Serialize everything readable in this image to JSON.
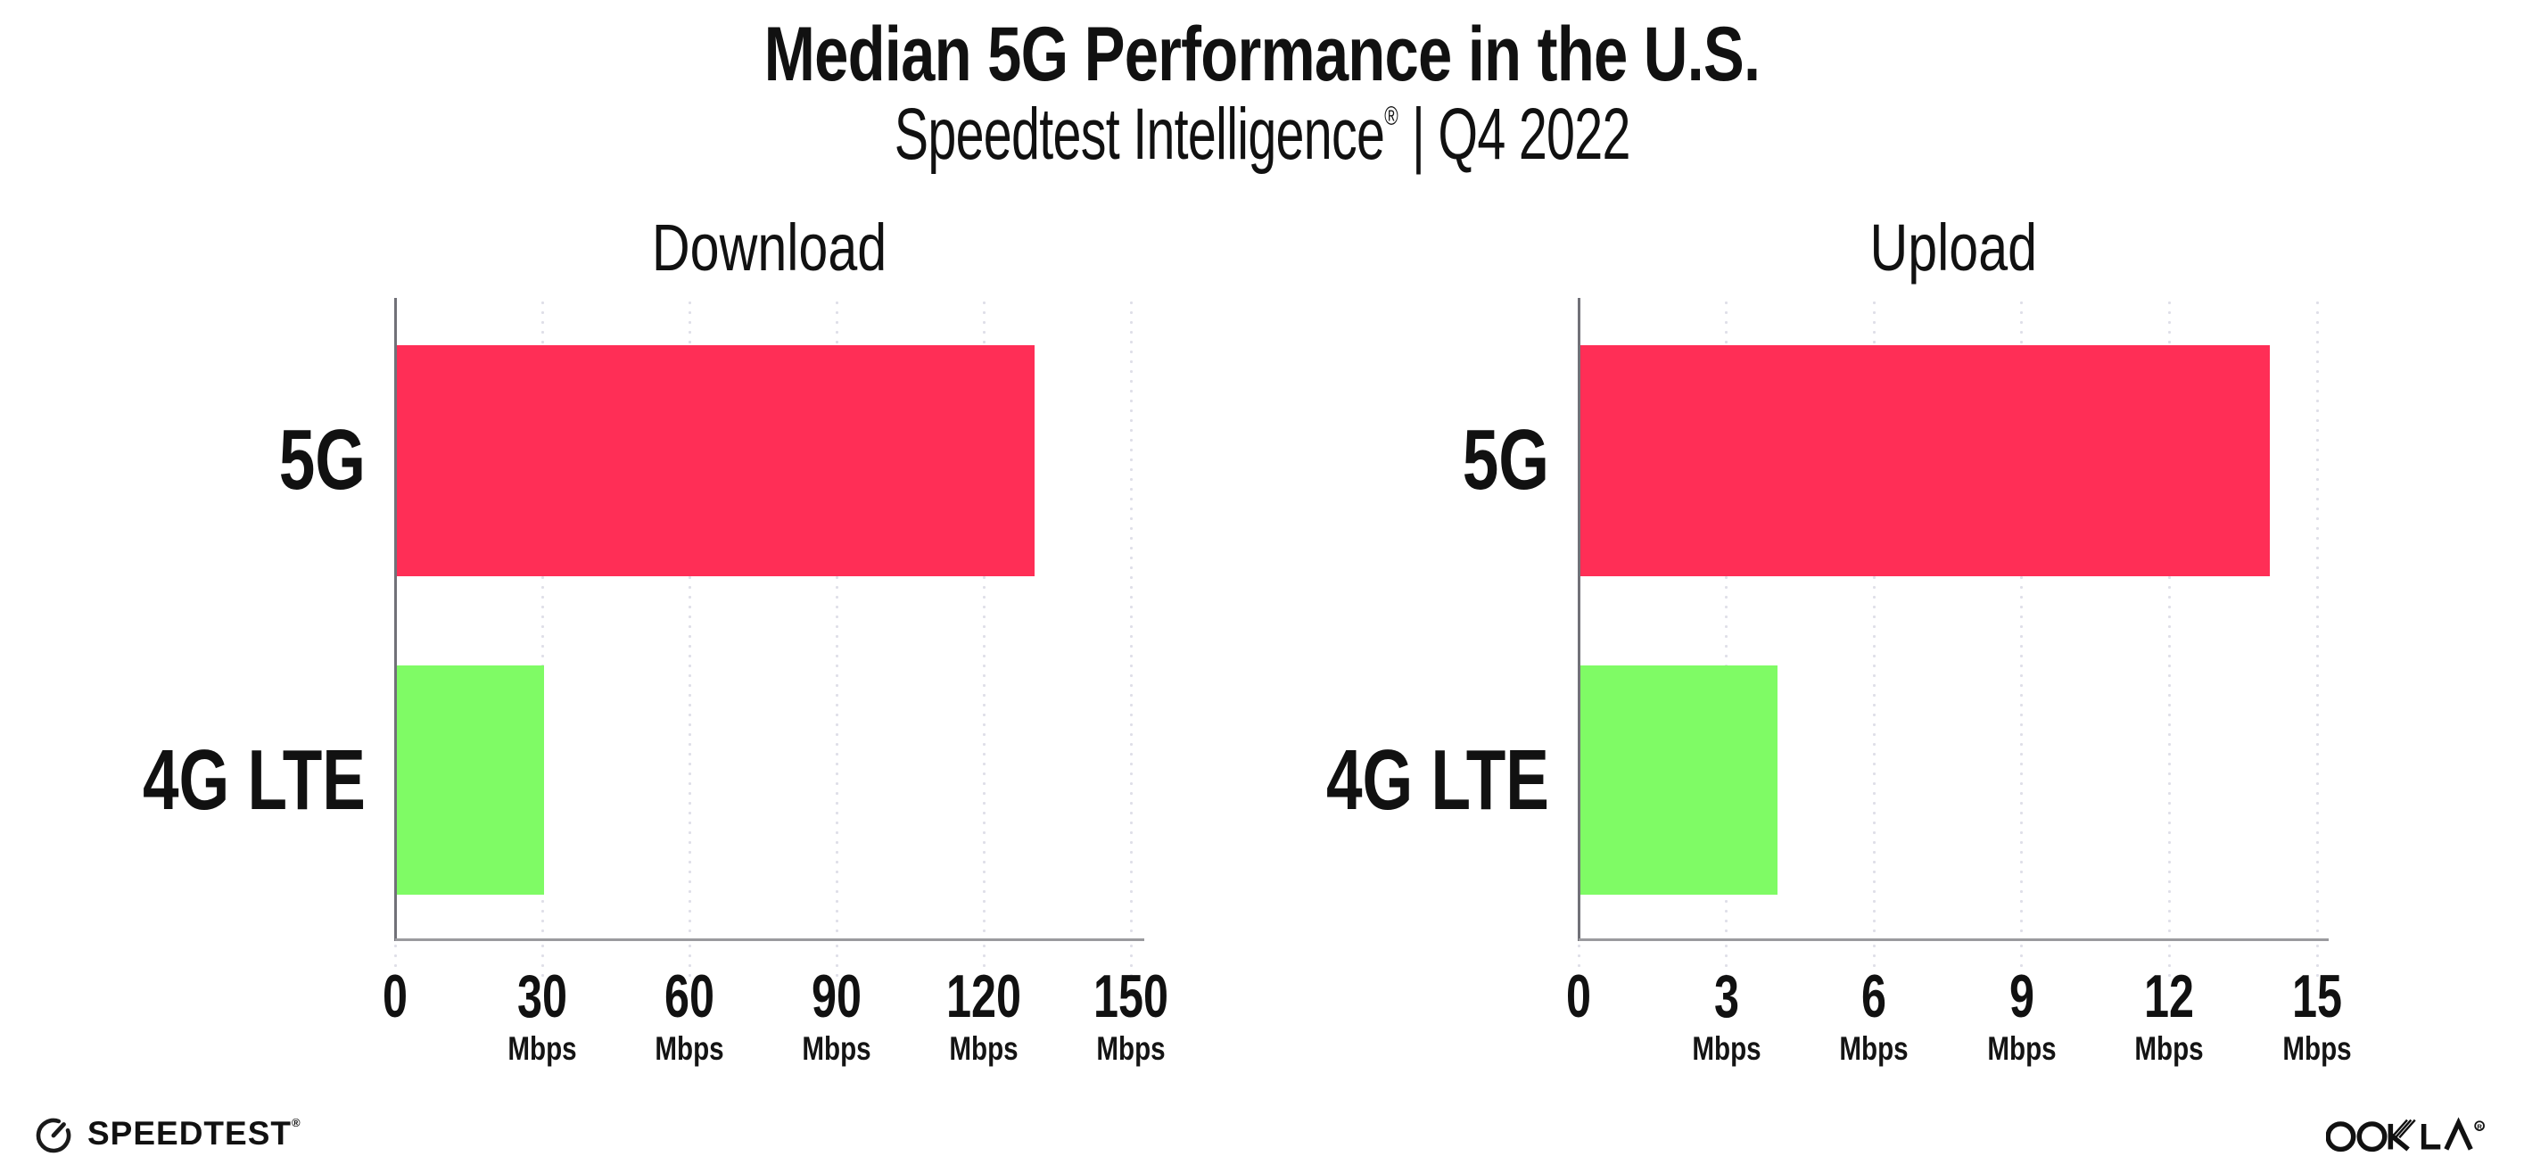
{
  "header": {
    "title": "Median 5G Performance in the U.S.",
    "subtitle_brand": "Speedtest Intelligence",
    "subtitle_reg": "®",
    "subtitle_rest": " | Q4 2022"
  },
  "chart_data": [
    {
      "type": "bar",
      "orientation": "horizontal",
      "title": "Download",
      "categories": [
        "5G",
        "4G LTE"
      ],
      "values": [
        130,
        30
      ],
      "unit": "Mbps",
      "xticks": [
        0,
        30,
        60,
        90,
        120,
        150
      ],
      "xlim": [
        0,
        152.7
      ],
      "grid": "dotted-vertical",
      "bar_colors": [
        "#FF2E56",
        "#7FFB65"
      ]
    },
    {
      "type": "bar",
      "orientation": "horizontal",
      "title": "Upload",
      "categories": [
        "5G",
        "4G LTE"
      ],
      "values": [
        14,
        4
      ],
      "unit": "Mbps",
      "xticks": [
        0,
        3,
        6,
        9,
        12,
        15
      ],
      "xlim": [
        0,
        15.2
      ],
      "grid": "dotted-vertical",
      "bar_colors": [
        "#FF2E56",
        "#7FFB65"
      ]
    }
  ],
  "footer": {
    "speedtest_label": "SPEEDTEST",
    "speedtest_reg": "®",
    "speedtest_icon": "gauge-icon",
    "ookla_label": "OOKLA",
    "ookla_reg": "®"
  },
  "colors": {
    "accent_pink": "#FF2E56",
    "accent_green": "#7FFB65",
    "axis_line": "#9a9a9e",
    "y_axis_line": "#717178",
    "grid_line": "#dfdfe8",
    "text": "#111111"
  }
}
